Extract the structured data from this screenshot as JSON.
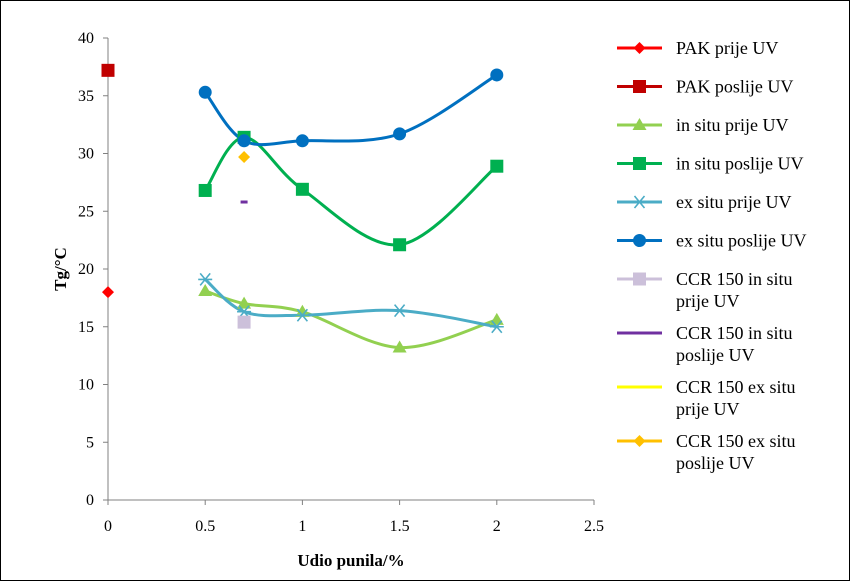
{
  "chart_data": {
    "type": "scatter",
    "xlabel": "Udio punila/%",
    "ylabel": "Tg/°C",
    "xlim": [
      0,
      2.5
    ],
    "ylim": [
      0,
      40
    ],
    "xticks": [
      0,
      0.5,
      1,
      1.5,
      2,
      2.5
    ],
    "xtick_labels": [
      "0",
      "0.5",
      "1",
      "1.5",
      "2",
      "2.5"
    ],
    "yticks": [
      0,
      5,
      10,
      15,
      20,
      25,
      30,
      35,
      40
    ],
    "ytick_labels": [
      "0",
      "5",
      "10",
      "15",
      "20",
      "25",
      "30",
      "35",
      "40"
    ],
    "grid": false,
    "legend_position": "right",
    "series": [
      {
        "name": "PAK prije UV",
        "color": "#ff0000",
        "marker": "diamond",
        "line": false,
        "x": [
          0
        ],
        "y": [
          18.0
        ]
      },
      {
        "name": "PAK poslije UV",
        "color": "#c00000",
        "marker": "square",
        "line": false,
        "x": [
          0
        ],
        "y": [
          37.2
        ]
      },
      {
        "name": "in situ prije UV",
        "color": "#92d050",
        "marker": "triangle",
        "line": true,
        "x": [
          0.5,
          0.7,
          1.0,
          1.5,
          2.0
        ],
        "y": [
          18.1,
          17.0,
          16.3,
          13.2,
          15.6
        ]
      },
      {
        "name": "in situ poslije UV",
        "color": "#00b050",
        "marker": "square",
        "line": true,
        "x": [
          0.5,
          0.7,
          1.0,
          1.5,
          2.0
        ],
        "y": [
          26.8,
          31.4,
          26.9,
          22.1,
          28.9
        ]
      },
      {
        "name": "ex situ prije UV",
        "color": "#4bacc6",
        "marker": "asterisk",
        "line": true,
        "x": [
          0.5,
          0.7,
          1.0,
          1.5,
          2.0
        ],
        "y": [
          19.1,
          16.3,
          16.0,
          16.4,
          15.0
        ]
      },
      {
        "name": "ex situ poslije UV",
        "color": "#0070c0",
        "marker": "circle",
        "line": true,
        "x": [
          0.5,
          0.7,
          1.0,
          1.5,
          2.0
        ],
        "y": [
          35.3,
          31.1,
          31.1,
          31.7,
          36.8
        ]
      },
      {
        "name": "CCR 150 in situ prije UV",
        "color": "#ccc0da",
        "marker": "square",
        "line": false,
        "x": [
          0.7
        ],
        "y": [
          15.4
        ]
      },
      {
        "name": "CCR 150 in situ poslije UV",
        "color": "#7030a0",
        "marker": "dash",
        "line": false,
        "x": [
          0.7
        ],
        "y": [
          25.8
        ]
      },
      {
        "name": "CCR 150 ex situ prije UV",
        "color": "#ffff00",
        "marker": "none",
        "line": false,
        "x": [
          0.7
        ],
        "y": [
          17.0
        ]
      },
      {
        "name": "CCR 150 ex situ poslije UV",
        "color": "#ffc000",
        "marker": "diamond",
        "line": false,
        "x": [
          0.7
        ],
        "y": [
          29.7
        ]
      }
    ],
    "legend_labels": [
      [
        "PAK prije UV"
      ],
      [
        "PAK poslije UV"
      ],
      [
        "in situ prije UV"
      ],
      [
        "in situ poslije UV"
      ],
      [
        "ex situ prije UV"
      ],
      [
        "ex situ poslije UV"
      ],
      [
        "CCR 150 in situ",
        "prije UV"
      ],
      [
        "CCR 150 in situ",
        "poslije UV"
      ],
      [
        "CCR 150 ex situ",
        "prije UV"
      ],
      [
        "CCR 150 ex situ",
        "poslije UV"
      ]
    ]
  }
}
